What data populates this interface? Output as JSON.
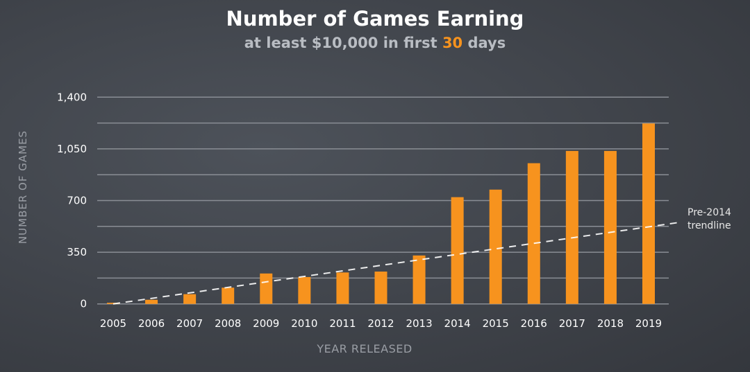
{
  "chart_data": {
    "type": "bar",
    "title": "Number of Games Earning",
    "subtitle_parts": [
      "at least $10,000 in first ",
      "30",
      " days"
    ],
    "xlabel": "YEAR RELEASED",
    "ylabel": "NUMBER OF GAMES",
    "ylim": [
      0,
      1400
    ],
    "yticks": [
      0,
      350,
      700,
      1050,
      1400
    ],
    "ytick_labels": [
      "0",
      "350",
      "700",
      "1,050",
      "1,400"
    ],
    "grid_step": 175,
    "grid": true,
    "categories": [
      "2005",
      "2006",
      "2007",
      "2008",
      "2009",
      "2010",
      "2011",
      "2012",
      "2013",
      "2014",
      "2015",
      "2016",
      "2017",
      "2018",
      "2019"
    ],
    "values": [
      8,
      28,
      66,
      110,
      206,
      182,
      213,
      219,
      328,
      723,
      774,
      953,
      1036,
      1036,
      1222
    ],
    "trendline": {
      "label_lines": [
        "Pre-2014",
        "trendline"
      ],
      "start": [
        2005,
        0
      ],
      "end": [
        2019.75,
        550
      ],
      "style": "dashed"
    },
    "colors": {
      "bar": "#f7931e",
      "grid": "#8a8e95",
      "trend": "#ffffff",
      "axis_text": "#ffffff",
      "axis_title": "#9a9ea5"
    }
  }
}
